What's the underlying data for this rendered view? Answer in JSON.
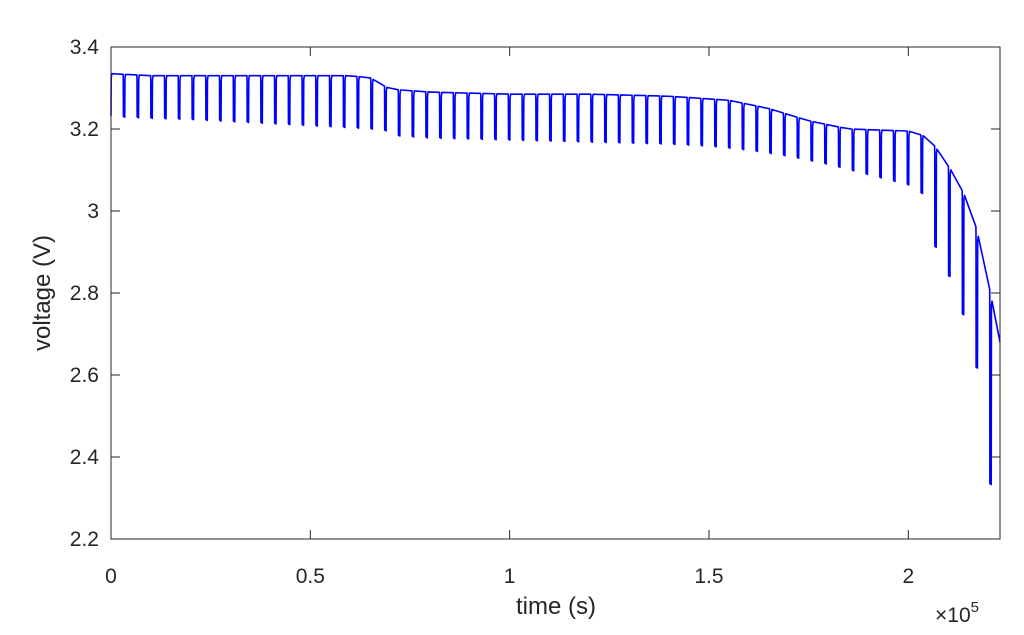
{
  "chart_data": {
    "type": "line",
    "xlabel": "time (s)",
    "ylabel": "voltage (V)",
    "xlim": [
      0,
      2.23
    ],
    "ylim": [
      2.2,
      3.4
    ],
    "x_ticks": [
      0,
      0.5,
      1,
      1.5,
      2
    ],
    "x_tick_labels": [
      "0",
      "0.5",
      "1",
      "1.5",
      "2"
    ],
    "y_ticks": [
      2.2,
      2.4,
      2.6,
      2.8,
      3.0,
      3.2,
      3.4
    ],
    "y_tick_labels": [
      "2.2",
      "2.4",
      "2.6",
      "2.8",
      "3",
      "3.2",
      "3.4"
    ],
    "x_exponent_prefix": "×10",
    "x_exponent_power": "5",
    "grid": false,
    "box": true,
    "line_color": "#0000ff",
    "pulse_period": 0.0345,
    "pulse_width": 0.004,
    "series": [
      {
        "rest_voltage": [
          [
            0.0,
            3.335
          ],
          [
            0.1,
            3.33
          ],
          [
            0.2,
            3.33
          ],
          [
            0.3,
            3.33
          ],
          [
            0.4,
            3.33
          ],
          [
            0.5,
            3.33
          ],
          [
            0.6,
            3.33
          ],
          [
            0.65,
            3.325
          ],
          [
            0.7,
            3.297
          ],
          [
            0.8,
            3.29
          ],
          [
            1.0,
            3.285
          ],
          [
            1.2,
            3.285
          ],
          [
            1.4,
            3.28
          ],
          [
            1.55,
            3.27
          ],
          [
            1.65,
            3.25
          ],
          [
            1.75,
            3.22
          ],
          [
            1.85,
            3.2
          ],
          [
            2.0,
            3.195
          ],
          [
            2.05,
            3.18
          ],
          [
            2.08,
            3.14
          ],
          [
            2.12,
            3.08
          ],
          [
            2.16,
            3.0
          ],
          [
            2.19,
            2.88
          ],
          [
            2.23,
            2.68
          ]
        ],
        "pulse_bottom_voltage": [
          [
            0.0,
            3.232
          ],
          [
            0.1,
            3.228
          ],
          [
            0.2,
            3.225
          ],
          [
            0.3,
            3.22
          ],
          [
            0.4,
            3.215
          ],
          [
            0.5,
            3.21
          ],
          [
            0.6,
            3.205
          ],
          [
            0.68,
            3.2
          ],
          [
            0.72,
            3.185
          ],
          [
            0.8,
            3.18
          ],
          [
            1.0,
            3.175
          ],
          [
            1.2,
            3.17
          ],
          [
            1.4,
            3.165
          ],
          [
            1.5,
            3.16
          ],
          [
            1.6,
            3.15
          ],
          [
            1.7,
            3.135
          ],
          [
            1.8,
            3.115
          ],
          [
            1.9,
            3.09
          ],
          [
            2.0,
            3.065
          ],
          [
            2.04,
            3.04
          ],
          [
            2.05,
            2.945
          ],
          [
            2.09,
            2.87
          ],
          [
            2.13,
            2.77
          ],
          [
            2.17,
            2.62
          ],
          [
            2.2,
            2.335
          ]
        ]
      }
    ]
  }
}
